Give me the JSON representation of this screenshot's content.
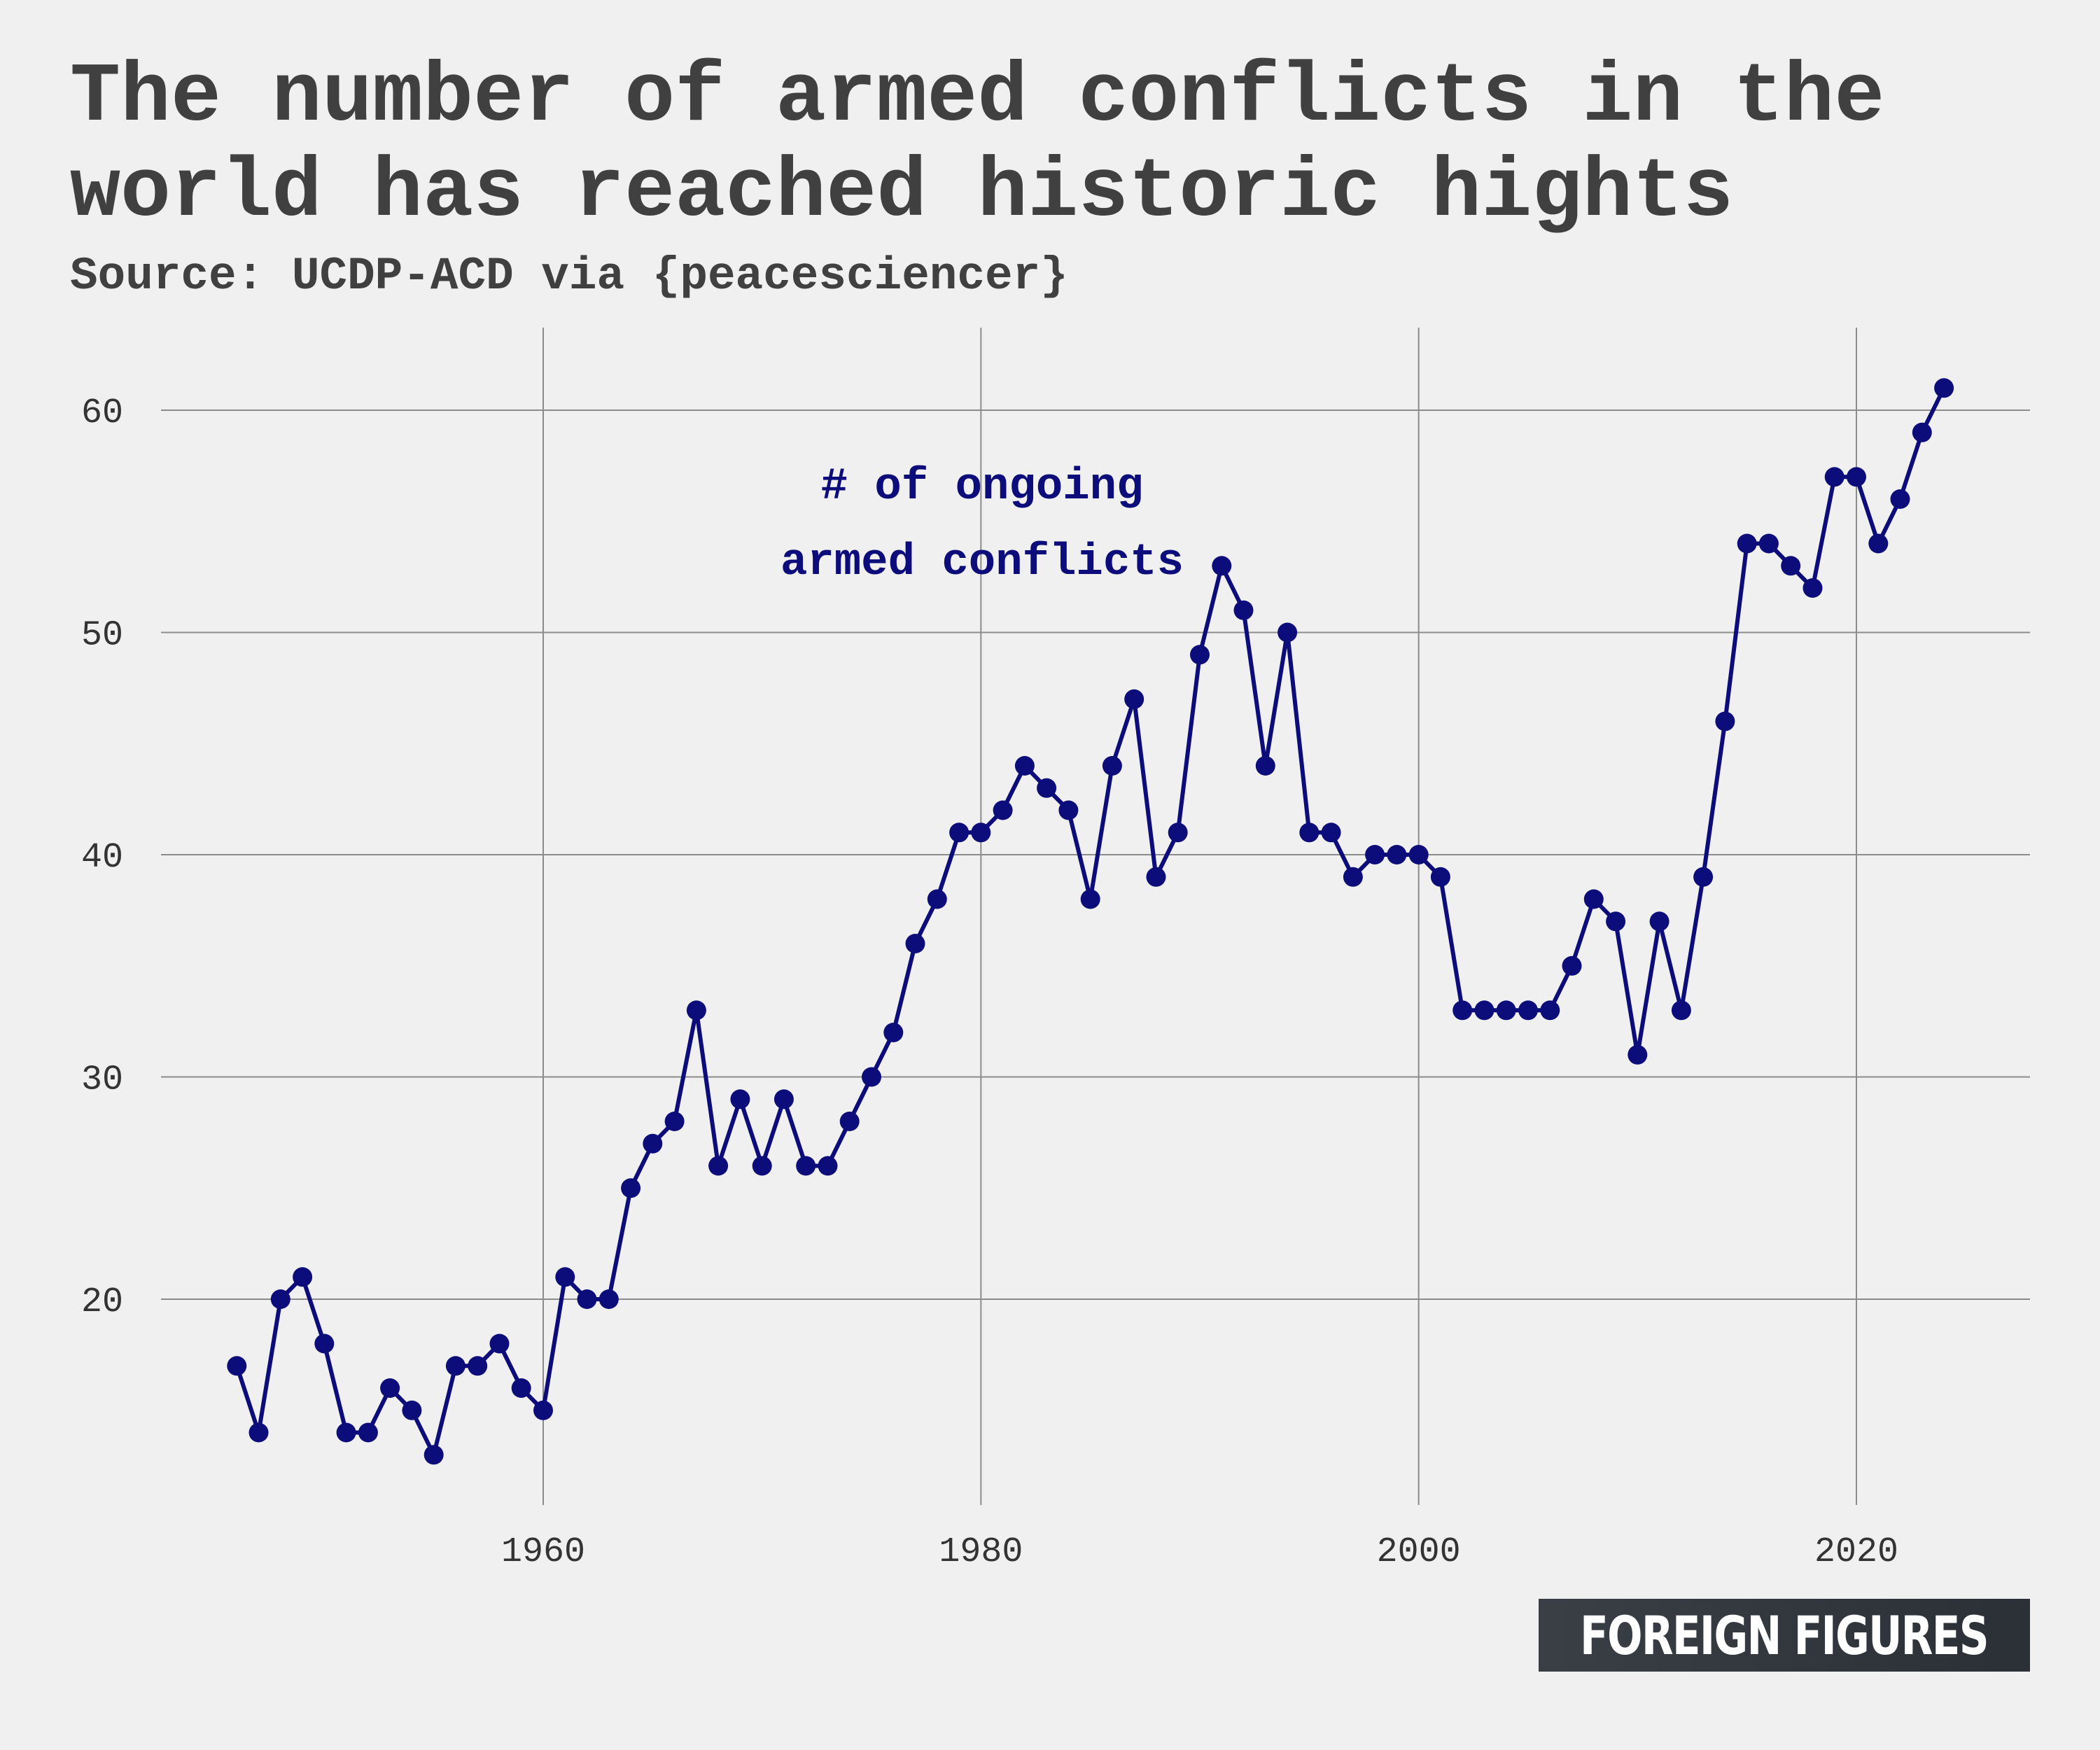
{
  "title": "The number of armed conflicts in the world has reached historic hights",
  "subtitle": "Source: UCDP-ACD via {peacesciencer}",
  "annotation": [
    "# of ongoing",
    "armed conflicts"
  ],
  "logo_text": "FOREIGN FIGURES",
  "colors": {
    "background": "#f0f0f0",
    "line": "#0c0c7a",
    "grid": "#8c8c8c",
    "text": "#404040"
  },
  "chart_data": {
    "type": "line",
    "title": "The number of armed conflicts in the world has reached historic hights",
    "subtitle": "Source: UCDP-ACD via {peacesciencer}",
    "xlabel": "",
    "ylabel": "",
    "xlim": [
      1942,
      2028
    ],
    "ylim": [
      11,
      63
    ],
    "x_ticks": [
      1960,
      1980,
      2000,
      2020
    ],
    "y_ticks": [
      20,
      30,
      40,
      50,
      60
    ],
    "grid": true,
    "legend": "none",
    "series": [
      {
        "x": [
          1946,
          1947,
          1948,
          1949,
          1950,
          1951,
          1952,
          1953,
          1954,
          1955,
          1956,
          1957,
          1958,
          1959,
          1960,
          1961,
          1962,
          1963,
          1964,
          1965,
          1966,
          1967,
          1968,
          1969,
          1970,
          1971,
          1972,
          1973,
          1974,
          1975,
          1976,
          1977,
          1978,
          1979,
          1980,
          1981,
          1982,
          1983,
          1984,
          1985,
          1986,
          1987,
          1988,
          1989,
          1990,
          1991,
          1992,
          1993,
          1994,
          1995,
          1996,
          1997,
          1998,
          1999,
          2000,
          2001,
          2002,
          2003,
          2004,
          2005,
          2006,
          2007,
          2008,
          2009,
          2010,
          2011,
          2012,
          2013,
          2014,
          2015,
          2016,
          2017,
          2018,
          2019,
          2020,
          2021,
          2022,
          2023,
          2024
        ],
        "values": [
          17,
          14,
          20,
          21,
          18,
          14,
          14,
          16,
          15,
          13,
          17,
          17,
          18,
          16,
          15,
          21,
          20,
          20,
          25,
          27,
          28,
          33,
          26,
          29,
          26,
          29,
          26,
          26,
          28,
          30,
          32,
          36,
          38,
          41,
          41,
          42,
          44,
          43,
          42,
          38,
          44,
          47,
          39,
          41,
          49,
          53,
          51,
          44,
          50,
          41,
          41,
          39,
          40,
          40,
          40,
          39,
          33,
          33,
          33,
          33,
          33,
          35,
          38,
          37,
          31,
          37,
          33,
          39,
          46,
          54,
          54,
          53,
          52,
          57,
          57,
          54,
          56,
          59,
          61
        ]
      }
    ]
  }
}
